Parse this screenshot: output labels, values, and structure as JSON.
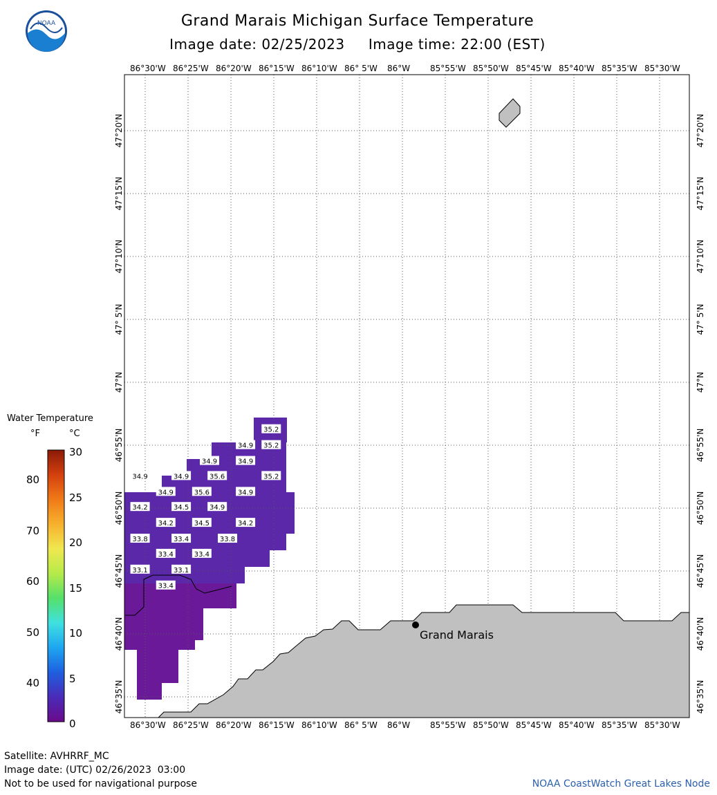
{
  "header": {
    "title": "Grand Marais Michigan Surface Temperature",
    "subtitle": "Image date: 02/25/2023     Image time: 22:00 (EST)",
    "logo_text": "NOAA"
  },
  "axes": {
    "lon_top": [
      "86°30'W",
      "86°25'W",
      "86°20'W",
      "86°15'W",
      "86°10'W",
      "86° 5'W",
      "86°W",
      "85°55'W",
      "85°50'W",
      "85°45'W",
      "85°40'W",
      "85°35'W",
      "85°30'W"
    ],
    "lon_bottom": [
      "86°30'W",
      "86°25'W",
      "86°20'W",
      "86°15'W",
      "86°10'W",
      "86° 5'W",
      "86°W",
      "85°55'W",
      "85°50'W",
      "85°45'W",
      "85°40'W",
      "85°35'W",
      "85°30'W"
    ],
    "lat_left": [
      "47°20'N",
      "47°15'N",
      "47°10'N",
      "47° 5'N",
      "47°N",
      "46°55'N",
      "46°50'N",
      "46°45'N",
      "46°40'N",
      "46°35'N"
    ],
    "lat_right": [
      "47°20'N",
      "47°15'N",
      "47°10'N",
      "47° 5'N",
      "47°N",
      "46°55'N",
      "46°50'N",
      "46°45'N",
      "46°40'N",
      "46°35'N"
    ]
  },
  "map": {
    "place_label": "Grand Marais",
    "land_color": "#c0c0c0",
    "water_color": "#5a28a8",
    "temperature_labels": [
      {
        "value": "35.2",
        "lon": -86.255,
        "lat": 46.938
      },
      {
        "value": "34.9",
        "lon": -86.305,
        "lat": 46.917
      },
      {
        "value": "35.2",
        "lon": -86.255,
        "lat": 46.917
      },
      {
        "value": "34.9",
        "lon": -86.375,
        "lat": 46.896
      },
      {
        "value": "34.9",
        "lon": -86.305,
        "lat": 46.896
      },
      {
        "value": "34.9",
        "lon": -86.51,
        "lat": 46.876
      },
      {
        "value": "34.9",
        "lon": -86.43,
        "lat": 46.876
      },
      {
        "value": "35.6",
        "lon": -86.36,
        "lat": 46.876
      },
      {
        "value": "35.2",
        "lon": -86.255,
        "lat": 46.876
      },
      {
        "value": "34.9",
        "lon": -86.46,
        "lat": 46.855
      },
      {
        "value": "35.6",
        "lon": -86.39,
        "lat": 46.855
      },
      {
        "value": "34.9",
        "lon": -86.305,
        "lat": 46.855
      },
      {
        "value": "34.2",
        "lon": -86.51,
        "lat": 46.835
      },
      {
        "value": "34.5",
        "lon": -86.43,
        "lat": 46.835
      },
      {
        "value": "34.9",
        "lon": -86.36,
        "lat": 46.835
      },
      {
        "value": "34.2",
        "lon": -86.46,
        "lat": 46.814
      },
      {
        "value": "34.5",
        "lon": -86.39,
        "lat": 46.814
      },
      {
        "value": "34.2",
        "lon": -86.305,
        "lat": 46.814
      },
      {
        "value": "33.8",
        "lon": -86.51,
        "lat": 46.793
      },
      {
        "value": "33.4",
        "lon": -86.43,
        "lat": 46.793
      },
      {
        "value": "33.8",
        "lon": -86.34,
        "lat": 46.793
      },
      {
        "value": "33.4",
        "lon": -86.46,
        "lat": 46.773
      },
      {
        "value": "33.4",
        "lon": -86.39,
        "lat": 46.773
      },
      {
        "value": "33.1",
        "lon": -86.51,
        "lat": 46.752
      },
      {
        "value": "33.1",
        "lon": -86.43,
        "lat": 46.752
      },
      {
        "value": "33.4",
        "lon": -86.46,
        "lat": 46.731
      }
    ]
  },
  "legend": {
    "title": "Water Temperature",
    "unit_f": "°F",
    "unit_c": "°C",
    "f_ticks": [
      "80",
      "70",
      "60",
      "50",
      "40"
    ],
    "c_ticks": [
      "30",
      "25",
      "20",
      "15",
      "10",
      "5",
      "0"
    ],
    "colors": [
      "#6a0a8a",
      "#4a2bb8",
      "#1f5fe0",
      "#1ea6f0",
      "#3fe0e0",
      "#55e06a",
      "#b6ea4a",
      "#f0e850",
      "#f7b12e",
      "#f07a18",
      "#d4400e",
      "#8a1a08"
    ]
  },
  "footer": {
    "satellite": "Satellite: AVHRRF_MC",
    "utc_date": "Image date: (UTC) 02/26/2023  03:00",
    "disclaimer": "Not to be used for navigational purpose",
    "credit": "NOAA CoastWatch Great Lakes Node"
  }
}
